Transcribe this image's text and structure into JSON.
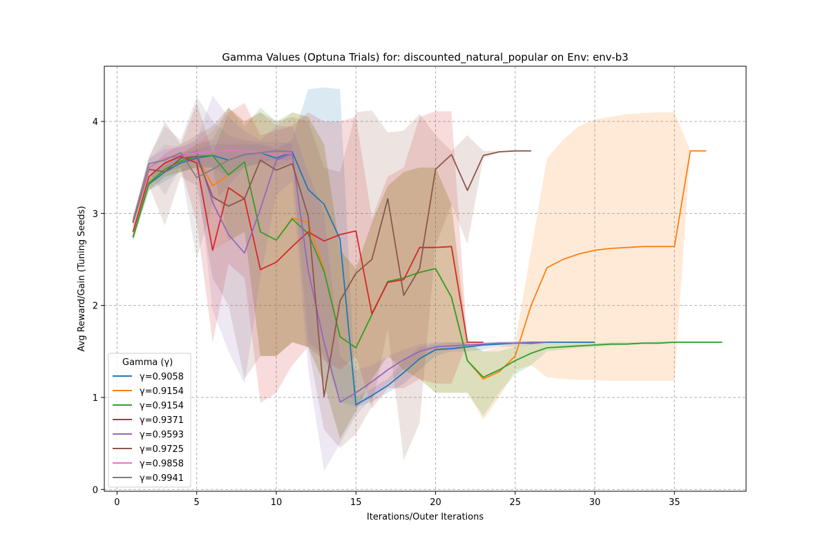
{
  "chart_data": {
    "type": "line",
    "title": "Gamma Values (Optuna Trials) for: discounted_natural_popular on Env: env-b3",
    "xlabel": "Iterations/Outer Iterations",
    "ylabel": "Avg Reward/Gain (Tuning Seeds)",
    "xlim": [
      -0.8,
      39.5
    ],
    "ylim": [
      -0.02,
      4.6
    ],
    "xticks": [
      0,
      5,
      10,
      15,
      20,
      25,
      30,
      35
    ],
    "yticks": [
      0,
      1,
      2,
      3,
      4
    ],
    "grid": true,
    "legend": {
      "title": "Gamma (γ)",
      "placement": "lower-left"
    },
    "series": [
      {
        "name": "γ=0.9058",
        "color": "#1f77b4",
        "x": [
          1,
          2,
          3,
          4,
          5,
          6,
          7,
          8,
          9,
          10,
          11,
          12,
          13,
          14,
          15,
          16,
          17,
          18,
          19,
          20,
          21,
          22,
          23,
          24,
          25,
          26,
          27,
          28,
          29,
          30
        ],
        "y": [
          2.74,
          3.32,
          3.45,
          3.55,
          3.6,
          3.63,
          3.58,
          3.64,
          3.66,
          3.6,
          3.67,
          3.26,
          3.1,
          2.72,
          0.92,
          1.02,
          1.13,
          1.27,
          1.42,
          1.52,
          1.53,
          1.55,
          1.57,
          1.58,
          1.59,
          1.59,
          1.6,
          1.6,
          1.6,
          1.6
        ],
        "lower": [
          2.7,
          3.25,
          3.35,
          3.45,
          3.5,
          3.5,
          3.4,
          3.5,
          3.55,
          3.5,
          3.55,
          1.6,
          1.45,
          0.95,
          0.9,
          0.95,
          1.05,
          1.15,
          1.3,
          1.45,
          1.5,
          1.5,
          1.52,
          1.55,
          1.55,
          1.57,
          1.58,
          1.58,
          1.59,
          1.59
        ],
        "upper": [
          2.8,
          3.4,
          3.55,
          3.65,
          3.7,
          3.75,
          3.75,
          3.75,
          3.75,
          3.7,
          3.8,
          4.35,
          4.37,
          4.35,
          1.0,
          1.1,
          1.2,
          1.4,
          1.55,
          1.58,
          1.6,
          1.6,
          1.6,
          1.61,
          1.61,
          1.61,
          1.61,
          1.61,
          1.61,
          1.61
        ]
      },
      {
        "name": "γ=0.9154",
        "color": "#ff7f0e",
        "x": [
          1,
          2,
          3,
          4,
          5,
          6,
          7,
          8,
          9,
          10,
          11,
          12,
          13,
          14,
          15,
          16,
          17,
          18,
          19,
          20,
          21,
          22,
          23,
          24,
          25,
          26,
          27,
          28,
          29,
          30,
          31,
          32,
          33,
          34,
          35,
          36,
          37
        ],
        "y": [
          2.75,
          3.33,
          3.48,
          3.57,
          3.62,
          3.3,
          3.42,
          3.56,
          2.8,
          2.71,
          2.95,
          2.9,
          2.39,
          1.66,
          1.54,
          1.9,
          2.26,
          2.3,
          2.36,
          2.4,
          2.09,
          1.4,
          1.2,
          1.28,
          1.45,
          2.0,
          2.41,
          2.5,
          2.56,
          2.6,
          2.62,
          2.63,
          2.64,
          2.64,
          2.64,
          3.68,
          3.68
        ],
        "lower": [
          2.7,
          3.25,
          3.4,
          3.45,
          3.5,
          2.6,
          2.7,
          2.8,
          1.45,
          1.45,
          1.6,
          1.55,
          1.15,
          0.55,
          0.85,
          1.2,
          1.45,
          1.3,
          1.2,
          1.05,
          1.05,
          1.05,
          0.76,
          1.0,
          1.3,
          1.35,
          1.22,
          1.2,
          1.19,
          1.19,
          1.18,
          1.18,
          1.18,
          1.18,
          1.18,
          3.68,
          3.68
        ],
        "upper": [
          2.8,
          3.4,
          3.55,
          3.65,
          3.75,
          3.9,
          4.15,
          4.0,
          4.1,
          3.95,
          4.1,
          4.05,
          3.75,
          2.6,
          2.4,
          2.9,
          3.3,
          3.45,
          3.5,
          3.5,
          3.1,
          1.6,
          1.5,
          1.55,
          1.6,
          2.6,
          3.6,
          3.8,
          3.95,
          4.02,
          4.05,
          4.08,
          4.09,
          4.1,
          4.1,
          3.68,
          3.68
        ]
      },
      {
        "name": "γ=0.9154",
        "color": "#2ca02c",
        "x": [
          1,
          2,
          3,
          4,
          5,
          6,
          7,
          8,
          9,
          10,
          11,
          12,
          13,
          14,
          15,
          16,
          17,
          18,
          19,
          20,
          21,
          22,
          23,
          24,
          25,
          26,
          27,
          28,
          29,
          30,
          31,
          32,
          33,
          34,
          35,
          36,
          37,
          38
        ],
        "y": [
          2.74,
          3.33,
          3.48,
          3.57,
          3.62,
          3.63,
          3.42,
          3.56,
          2.8,
          2.71,
          2.94,
          2.78,
          2.37,
          1.66,
          1.54,
          1.9,
          2.26,
          2.3,
          2.36,
          2.4,
          2.09,
          1.4,
          1.22,
          1.3,
          1.4,
          1.48,
          1.54,
          1.55,
          1.56,
          1.57,
          1.58,
          1.58,
          1.59,
          1.59,
          1.6,
          1.6,
          1.6,
          1.6
        ],
        "lower": [
          2.7,
          3.25,
          3.4,
          3.45,
          3.5,
          3.5,
          2.7,
          2.8,
          1.45,
          1.45,
          1.6,
          1.55,
          1.15,
          0.55,
          0.85,
          1.2,
          1.45,
          1.3,
          1.2,
          1.05,
          1.05,
          1.05,
          0.8,
          1.05,
          1.25,
          1.35,
          1.5,
          1.52,
          1.54,
          1.55,
          1.56,
          1.57,
          1.58,
          1.58,
          1.59,
          1.59,
          1.59,
          1.59
        ],
        "upper": [
          2.8,
          3.4,
          3.55,
          3.65,
          3.75,
          3.8,
          4.15,
          3.95,
          4.15,
          4.0,
          4.1,
          4.05,
          3.75,
          2.6,
          2.4,
          2.9,
          3.3,
          3.45,
          3.5,
          3.5,
          3.1,
          1.6,
          1.5,
          1.5,
          1.55,
          1.58,
          1.58,
          1.58,
          1.59,
          1.59,
          1.6,
          1.6,
          1.6,
          1.61,
          1.61,
          1.61,
          1.61,
          1.61
        ]
      },
      {
        "name": "γ=0.9371",
        "color": "#d62728",
        "x": [
          1,
          2,
          3,
          4,
          5,
          6,
          7,
          8,
          9,
          10,
          11,
          12,
          13,
          14,
          15,
          16,
          17,
          18,
          19,
          20,
          21,
          22,
          23
        ],
        "y": [
          2.8,
          3.4,
          3.55,
          3.62,
          3.55,
          2.6,
          3.28,
          3.16,
          2.39,
          2.47,
          2.64,
          2.8,
          2.7,
          2.77,
          2.81,
          1.91,
          2.25,
          2.28,
          2.63,
          2.63,
          2.64,
          1.6,
          1.6
        ],
        "lower": [
          2.75,
          3.3,
          3.45,
          3.5,
          2.9,
          1.6,
          2.45,
          2.3,
          0.94,
          1.05,
          1.35,
          1.55,
          1.4,
          1.3,
          1.45,
          0.88,
          1.1,
          1.1,
          1.2,
          1.15,
          1.15,
          1.6,
          1.6
        ],
        "upper": [
          2.85,
          3.5,
          3.65,
          3.75,
          4.2,
          3.65,
          4.1,
          4.2,
          3.85,
          3.9,
          3.95,
          4.1,
          4.0,
          4.0,
          4.05,
          2.95,
          3.4,
          3.5,
          4.05,
          4.11,
          4.11,
          1.6,
          1.6
        ]
      },
      {
        "name": "γ=0.9593",
        "color": "#9467bd",
        "x": [
          1,
          2,
          3,
          4,
          5,
          6,
          7,
          8,
          9,
          10,
          11,
          12,
          13,
          14,
          15,
          16,
          17,
          18,
          19,
          20,
          21,
          22,
          23,
          24,
          25,
          26,
          27
        ],
        "y": [
          2.9,
          3.5,
          3.6,
          3.63,
          3.67,
          3.12,
          2.77,
          2.57,
          3.05,
          3.58,
          3.65,
          2.38,
          1.6,
          0.95,
          1.05,
          1.17,
          1.3,
          1.41,
          1.5,
          1.55,
          1.56,
          1.57,
          1.58,
          1.59,
          1.59,
          1.6,
          1.6
        ],
        "lower": [
          2.85,
          3.4,
          3.5,
          3.55,
          3.55,
          1.95,
          1.5,
          1.15,
          2.3,
          3.2,
          3.35,
          1.3,
          0.2,
          0.5,
          0.8,
          1.0,
          1.15,
          1.3,
          1.42,
          1.5,
          1.52,
          1.54,
          1.56,
          1.57,
          1.58,
          1.58,
          1.59
        ],
        "upper": [
          2.95,
          3.6,
          3.7,
          3.72,
          3.8,
          4.28,
          4.05,
          3.9,
          3.8,
          3.95,
          3.95,
          3.45,
          3.0,
          1.45,
          1.3,
          1.35,
          1.45,
          1.52,
          1.58,
          1.6,
          1.6,
          1.6,
          1.6,
          1.6,
          1.61,
          1.61,
          1.61
        ]
      },
      {
        "name": "γ=0.9725",
        "color": "#8c564b",
        "x": [
          1,
          2,
          3,
          4,
          5,
          6,
          7,
          8,
          9,
          10,
          11,
          12,
          13,
          14,
          15,
          16,
          17,
          18,
          19,
          20,
          21,
          22,
          23,
          24,
          25,
          26
        ],
        "y": [
          2.9,
          3.48,
          3.45,
          3.6,
          3.62,
          3.18,
          3.08,
          3.16,
          3.58,
          3.47,
          3.54,
          2.97,
          1.01,
          2.05,
          2.35,
          2.5,
          3.16,
          2.11,
          2.4,
          3.48,
          3.64,
          3.25,
          3.63,
          3.67,
          3.68,
          3.68
        ],
        "lower": [
          2.85,
          3.3,
          2.87,
          3.4,
          3.3,
          2.3,
          2.0,
          1.2,
          1.45,
          1.45,
          1.6,
          1.55,
          0.65,
          0.45,
          0.6,
          0.9,
          1.75,
          0.32,
          0.72,
          2.65,
          3.1,
          2.67,
          3.6,
          3.66,
          3.67,
          3.68
        ],
        "upper": [
          2.95,
          3.6,
          4.0,
          3.75,
          3.85,
          3.95,
          4.15,
          4.0,
          4.1,
          4.0,
          4.05,
          4.0,
          3.5,
          3.45,
          4.1,
          4.12,
          3.88,
          3.9,
          4.08,
          3.85,
          3.68,
          3.85,
          3.68,
          3.68,
          3.68,
          3.68
        ]
      },
      {
        "name": "γ=0.9858",
        "color": "#e377c2",
        "x": [
          1,
          2,
          3,
          4,
          5,
          6,
          7,
          8,
          9,
          10,
          11
        ],
        "y": [
          2.93,
          3.5,
          3.6,
          3.64,
          3.66,
          3.67,
          3.69,
          3.68,
          3.66,
          3.64,
          3.66
        ],
        "lower": [
          2.88,
          3.45,
          3.5,
          3.55,
          3.55,
          3.55,
          3.58,
          3.58,
          3.56,
          3.55,
          3.56
        ],
        "upper": [
          2.98,
          3.58,
          3.75,
          3.72,
          3.78,
          3.8,
          3.8,
          3.78,
          3.76,
          3.74,
          3.76
        ]
      },
      {
        "name": "γ=0.9941",
        "color": "#7f7f7f",
        "x": [
          1,
          2,
          3,
          4,
          5,
          6,
          7,
          8,
          9,
          10,
          11
        ],
        "y": [
          2.91,
          3.54,
          3.58,
          3.66,
          3.39,
          3.48,
          3.58,
          3.64,
          3.66,
          3.68,
          3.67
        ],
        "lower": [
          2.86,
          3.45,
          3.2,
          3.5,
          2.5,
          3.1,
          3.3,
          3.5,
          3.55,
          3.58,
          3.58
        ],
        "upper": [
          2.96,
          3.62,
          3.95,
          3.8,
          4.27,
          4.0,
          3.85,
          3.8,
          3.78,
          3.78,
          3.76
        ]
      }
    ]
  }
}
